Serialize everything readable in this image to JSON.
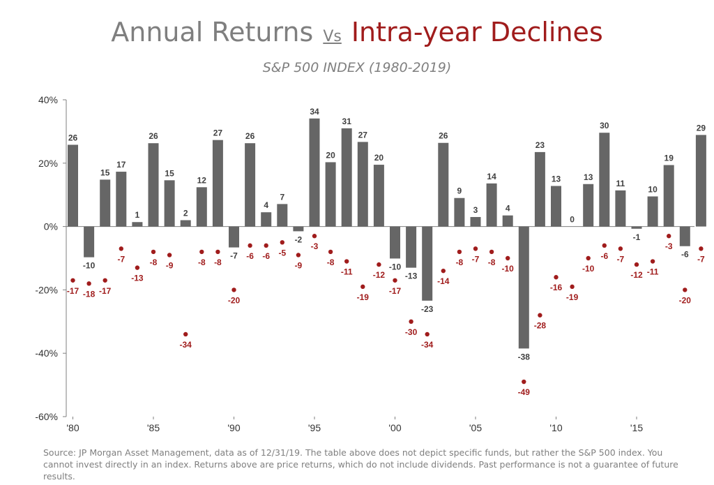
{
  "title": {
    "left": "Annual Returns",
    "vs": "Vs",
    "right": "Intra-year Declines",
    "right_color": "#a01c1c"
  },
  "subtitle": "S&P 500 INDEX (1980-2019)",
  "source": "Source: JP Morgan Asset Management, data as of 12/31/19. The table above does not depict specific funds, but rather the S&P 500 index. You cannot invest directly in an index. Returns above are price returns, which do not include dividends. Past performance is not a guarantee of future results.",
  "chart_data": {
    "type": "bar",
    "x": [
      1980,
      1981,
      1982,
      1983,
      1984,
      1985,
      1986,
      1987,
      1988,
      1989,
      1990,
      1991,
      1992,
      1993,
      1994,
      1995,
      1996,
      1997,
      1998,
      1999,
      2000,
      2001,
      2002,
      2003,
      2004,
      2005,
      2006,
      2007,
      2008,
      2009,
      2010,
      2011,
      2012,
      2013,
      2014,
      2015,
      2016,
      2017,
      2018,
      2019
    ],
    "x_tick_labels": [
      {
        "x": 1980,
        "label": "'80"
      },
      {
        "x": 1985,
        "label": "'85"
      },
      {
        "x": 1990,
        "label": "'90"
      },
      {
        "x": 1995,
        "label": "'95"
      },
      {
        "x": 2000,
        "label": "'00"
      },
      {
        "x": 2005,
        "label": "'05"
      },
      {
        "x": 2010,
        "label": "'10"
      },
      {
        "x": 2015,
        "label": "'15"
      }
    ],
    "y_ticks": [
      {
        "value": 40,
        "label": "40%"
      },
      {
        "value": 20,
        "label": "20%"
      },
      {
        "value": 0,
        "label": "0%"
      },
      {
        "value": -20,
        "label": "-20%"
      },
      {
        "value": -40,
        "label": "-40%"
      },
      {
        "value": -60,
        "label": "-60%"
      }
    ],
    "ylim": [
      -60,
      40
    ],
    "grid": false,
    "series": [
      {
        "type": "bar",
        "color": "#666666",
        "values": [
          25.8,
          -9.7,
          14.8,
          17.3,
          1.4,
          26.3,
          14.6,
          2.0,
          12.4,
          27.3,
          -6.6,
          26.3,
          4.5,
          7.1,
          -1.5,
          34.1,
          20.3,
          31.0,
          26.7,
          19.5,
          -10.1,
          -13.0,
          -23.4,
          26.4,
          9.0,
          3.0,
          13.6,
          3.5,
          -38.5,
          23.5,
          12.8,
          0.0,
          13.4,
          29.6,
          11.4,
          -0.7,
          9.5,
          19.4,
          -6.2,
          28.9
        ],
        "labels": [
          "26",
          "-10",
          "15",
          "17",
          "1",
          "26",
          "15",
          "2",
          "12",
          "27",
          "-7",
          "26",
          "4",
          "7",
          "-2",
          "34",
          "20",
          "31",
          "27",
          "20",
          "-10",
          "-13",
          "-23",
          "26",
          "9",
          "3",
          "14",
          "4",
          "-38",
          "23",
          "13",
          "0",
          "13",
          "30",
          "11",
          "-1",
          "10",
          "19",
          "-6",
          "29"
        ]
      },
      {
        "type": "scatter",
        "color": "#a01c1c",
        "values": [
          -17,
          -18,
          -17,
          -7,
          -13,
          -8,
          -9,
          -34,
          -8,
          -8,
          -20,
          -6,
          -6,
          -5,
          -9,
          -3,
          -8,
          -11,
          -19,
          -12,
          -17,
          -30,
          -34,
          -14,
          -8,
          -7,
          -8,
          -10,
          -49,
          -28,
          -16,
          -19,
          -10,
          -6,
          -7,
          -12,
          -11,
          -3,
          -20,
          -7
        ],
        "labels": [
          "-17",
          "-18",
          "-17",
          "-7",
          "-13",
          "-8",
          "-9",
          "-34",
          "-8",
          "-8",
          "-20",
          "-6",
          "-6",
          "-5",
          "-9",
          "-3",
          "-8",
          "-11",
          "-19",
          "-12",
          "-17",
          "-30",
          "-34",
          "-14",
          "-8",
          "-7",
          "-8",
          "-10",
          "-49",
          "-28",
          "-16",
          "-19",
          "-10",
          "-6",
          "-7",
          "-12",
          "-11",
          "-3",
          "-20",
          "-7"
        ]
      }
    ]
  }
}
